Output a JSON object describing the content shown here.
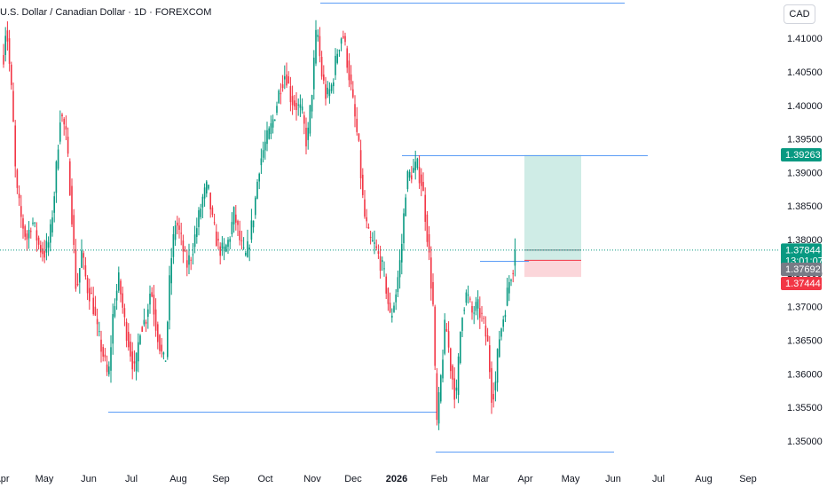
{
  "header": {
    "title": "U.S. Dollar / Canadian Dollar · 1D · FOREXCOM",
    "currency": "CAD"
  },
  "colors": {
    "up": "#089981",
    "down": "#f23645",
    "level": "#5b9cf6",
    "profit_zone": "#cfece6",
    "loss_zone": "#fbd6da",
    "price_line": "#089981",
    "neutral_badge": "#787b86"
  },
  "chart_data": {
    "type": "candlestick",
    "title": "U.S. Dollar / Canadian Dollar · 1D · FOREXCOM",
    "xlabel": "",
    "ylabel": "",
    "ylim": [
      1.3463,
      1.4157
    ],
    "y_ticks": [
      "1.41000",
      "1.40500",
      "1.40000",
      "1.39500",
      "1.39000",
      "1.38500",
      "1.38000",
      "1.37500",
      "1.37000",
      "1.36500",
      "1.36000",
      "1.35500",
      "1.35000"
    ],
    "x_ticks": [
      {
        "label": "Apr",
        "pos": 2
      },
      {
        "label": "May",
        "pos": 50
      },
      {
        "label": "Jun",
        "pos": 100
      },
      {
        "label": "Jul",
        "pos": 148
      },
      {
        "label": "Aug",
        "pos": 201
      },
      {
        "label": "Sep",
        "pos": 249
      },
      {
        "label": "Oct",
        "pos": 299
      },
      {
        "label": "Nov",
        "pos": 352
      },
      {
        "label": "Dec",
        "pos": 398
      },
      {
        "label": "2026",
        "pos": 447,
        "bold": true
      },
      {
        "label": "Feb",
        "pos": 495
      },
      {
        "label": "Mar",
        "pos": 542
      },
      {
        "label": "Apr",
        "pos": 592
      },
      {
        "label": "May",
        "pos": 643
      },
      {
        "label": "Jun",
        "pos": 691
      },
      {
        "label": "Jul",
        "pos": 742
      },
      {
        "label": "Aug",
        "pos": 793
      },
      {
        "label": "Sep",
        "pos": 843
      }
    ],
    "waypoints": [
      [
        4,
        1.4075
      ],
      [
        7,
        1.4125
      ],
      [
        14,
        1.4
      ],
      [
        18,
        1.388
      ],
      [
        24,
        1.383
      ],
      [
        30,
        1.38
      ],
      [
        36,
        1.383
      ],
      [
        44,
        1.379
      ],
      [
        50,
        1.378
      ],
      [
        56,
        1.38
      ],
      [
        62,
        1.388
      ],
      [
        68,
        1.399
      ],
      [
        74,
        1.396
      ],
      [
        80,
        1.386
      ],
      [
        86,
        1.372
      ],
      [
        92,
        1.378
      ],
      [
        98,
        1.373
      ],
      [
        104,
        1.371
      ],
      [
        110,
        1.366
      ],
      [
        116,
        1.363
      ],
      [
        122,
        1.359
      ],
      [
        128,
        1.37
      ],
      [
        134,
        1.374
      ],
      [
        140,
        1.368
      ],
      [
        146,
        1.364
      ],
      [
        152,
        1.36
      ],
      [
        158,
        1.367
      ],
      [
        164,
        1.368
      ],
      [
        170,
        1.373
      ],
      [
        176,
        1.367
      ],
      [
        182,
        1.363
      ],
      [
        186,
        1.361
      ],
      [
        192,
        1.376
      ],
      [
        198,
        1.383
      ],
      [
        204,
        1.38
      ],
      [
        210,
        1.376
      ],
      [
        216,
        1.378
      ],
      [
        222,
        1.382
      ],
      [
        228,
        1.386
      ],
      [
        234,
        1.388
      ],
      [
        240,
        1.382
      ],
      [
        246,
        1.379
      ],
      [
        252,
        1.378
      ],
      [
        258,
        1.38
      ],
      [
        264,
        1.384
      ],
      [
        270,
        1.38
      ],
      [
        276,
        1.377
      ],
      [
        280,
        1.379
      ],
      [
        286,
        1.384
      ],
      [
        292,
        1.391
      ],
      [
        298,
        1.394
      ],
      [
        304,
        1.396
      ],
      [
        310,
        1.399
      ],
      [
        316,
        1.403
      ],
      [
        322,
        1.405
      ],
      [
        328,
        1.401
      ],
      [
        334,
        1.4
      ],
      [
        340,
        1.399
      ],
      [
        346,
        1.394
      ],
      [
        352,
        1.403
      ],
      [
        357,
        1.412
      ],
      [
        362,
        1.405
      ],
      [
        368,
        1.401
      ],
      [
        374,
        1.403
      ],
      [
        380,
        1.408
      ],
      [
        386,
        1.411
      ],
      [
        392,
        1.406
      ],
      [
        398,
        1.4
      ],
      [
        404,
        1.394
      ],
      [
        410,
        1.384
      ],
      [
        416,
        1.38
      ],
      [
        422,
        1.379
      ],
      [
        428,
        1.377
      ],
      [
        434,
        1.374
      ],
      [
        440,
        1.368
      ],
      [
        446,
        1.372
      ],
      [
        452,
        1.378
      ],
      [
        458,
        1.389
      ],
      [
        464,
        1.39
      ],
      [
        470,
        1.391
      ],
      [
        476,
        1.388
      ],
      [
        482,
        1.38
      ],
      [
        488,
        1.37
      ],
      [
        492,
        1.352
      ],
      [
        496,
        1.358
      ],
      [
        502,
        1.368
      ],
      [
        508,
        1.361
      ],
      [
        514,
        1.356
      ],
      [
        520,
        1.369
      ],
      [
        526,
        1.372
      ],
      [
        532,
        1.369
      ],
      [
        538,
        1.37
      ],
      [
        544,
        1.368
      ],
      [
        550,
        1.364
      ],
      [
        554,
        1.357
      ],
      [
        558,
        1.358
      ],
      [
        562,
        1.365
      ],
      [
        568,
        1.369
      ],
      [
        574,
        1.374
      ],
      [
        578,
        1.376
      ],
      [
        582,
        1.3784
      ]
    ],
    "levels": [
      {
        "price": 1.4153,
        "x_start": 361,
        "x_end": 704
      },
      {
        "price": 1.3926,
        "x_start": 453,
        "x_end": 730
      },
      {
        "price": 1.3543,
        "x_start": 122,
        "x_end": 493
      },
      {
        "price": 1.3484,
        "x_start": 491,
        "x_end": 692
      },
      {
        "price": 1.3768,
        "x_start": 541,
        "x_end": 596
      }
    ],
    "position": {
      "entry": 1.37692,
      "target": 1.39263,
      "stop": 1.37444,
      "x_start": 591,
      "x_end": 655
    },
    "last_price": 1.37844,
    "countdown": "13:01:07",
    "badges": {
      "target": "1.39263",
      "last": "1.37844",
      "entry": "1.37692",
      "stop": "1.37444"
    }
  }
}
